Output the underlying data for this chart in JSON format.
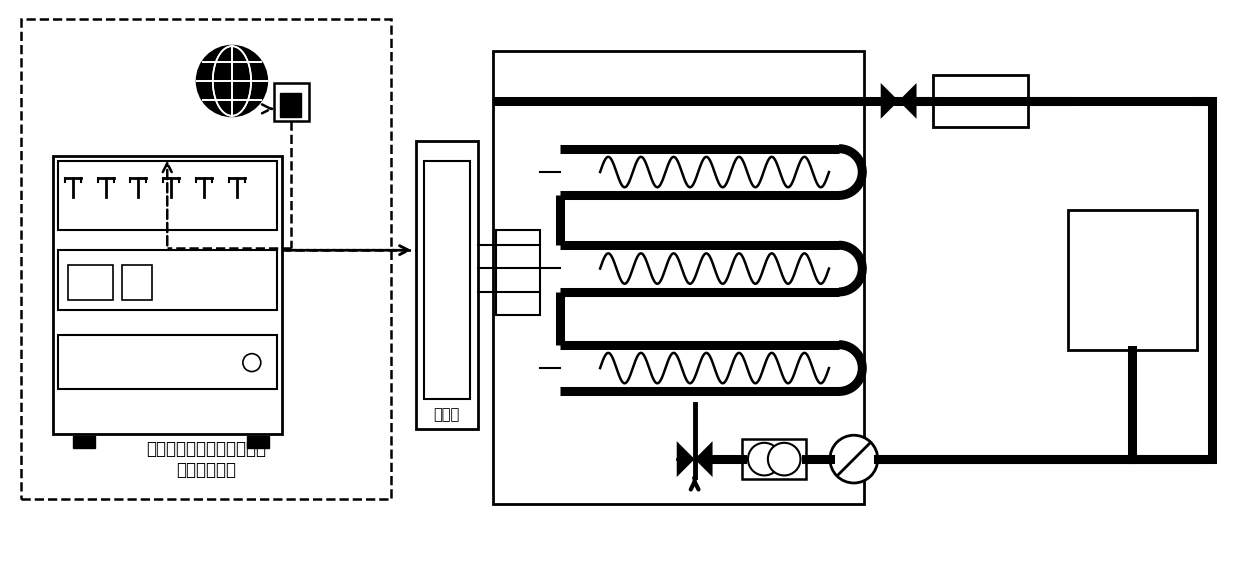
{
  "bg_color": "#ffffff",
  "line_color": "#000000",
  "label_control": "蓄热式电采暖系统优化运行\n自动控制装置",
  "label_distribution": "配电柜"
}
